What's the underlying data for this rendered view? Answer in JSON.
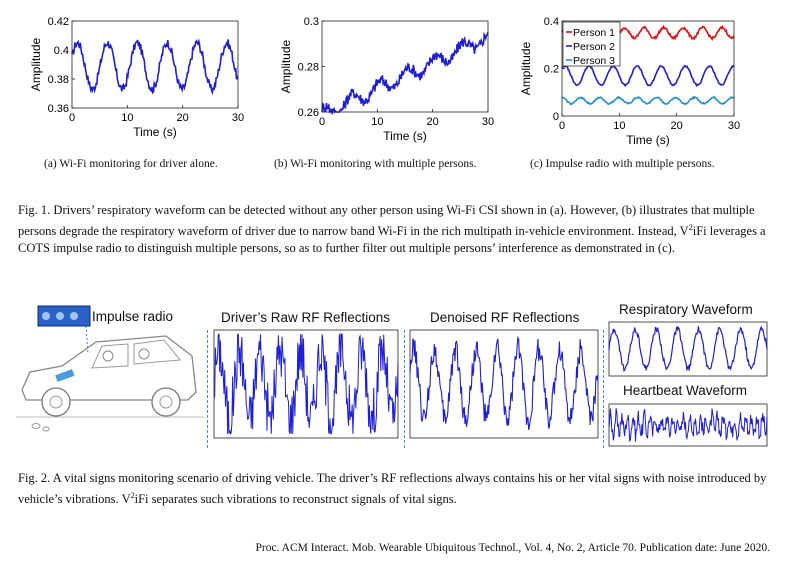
{
  "fig1": {
    "subcaptions": [
      "(a) Wi-Fi monitoring for driver alone.",
      "(b) Wi-Fi monitoring with multiple persons.",
      "(c) Impulse radio with multiple persons."
    ],
    "caption": "Fig. 1. Drivers’ respiratory waveform can be detected without any other person using Wi-Fi CSI shown in (a). However, (b) illustrates that multiple persons degrade the respiratory waveform of driver due to narrow band Wi-Fi in the rich multipath in-vehicle environment. Instead, V²iFi leverages a COTS impulse radio to distinguish multiple persons, so as to further filter out multiple persons’ interference as demonstrated in (c)."
  },
  "fig2": {
    "labels": {
      "impulse_radio": "Impulse radio",
      "raw": "Driver’s Raw RF Reflections",
      "denoised": "Denoised RF Reflections",
      "respiratory": "Respiratory Waveform",
      "heartbeat": "Heartbeat Waveform"
    },
    "caption": "Fig. 2. A vital signs monitoring scenario of driving vehicle. The driver’s RF reflections always contains his or her vital signs with noise introduced by vehicle’s vibrations. V²iFi separates such vibrations to reconstruct signals of vital signs."
  },
  "footer": "Proc. ACM Interact. Mob. Wearable Ubiquitous Technol., Vol. 4, No. 2, Article 70. Publication date: June 2020.",
  "colors": {
    "line": "#1f1fd6",
    "red": "#e01010",
    "cyan": "#1f8fd0",
    "dash": "#4a90c8"
  },
  "chart_data": [
    {
      "type": "line",
      "xlabel": "Time (s)",
      "ylabel": "Amplitude",
      "xlim": [
        0,
        30
      ],
      "ylim": [
        0.36,
        0.42
      ],
      "xticks": [
        0,
        10,
        20,
        30
      ],
      "yticks": [
        0.36,
        0.38,
        0.4,
        0.42
      ],
      "ytick_labels": [
        "0.36",
        "0.38",
        "0.4",
        "0.42"
      ],
      "series": [
        {
          "period": 5.4,
          "phase": 0.4,
          "mean": 0.389,
          "amp": 0.016,
          "noise": 0.003,
          "trend": 0.0
        }
      ]
    },
    {
      "type": "line",
      "xlabel": "Time (s)",
      "ylabel": "Amplitude",
      "xlim": [
        0,
        30
      ],
      "ylim": [
        0.26,
        0.3
      ],
      "xticks": [
        0,
        10,
        20,
        30
      ],
      "yticks": [
        0.26,
        0.28,
        0.3
      ],
      "ytick_labels": [
        "0.26",
        "0.28",
        "0.3"
      ],
      "series": [
        {
          "period": 5.0,
          "phase": 1.0,
          "mean": 0.276,
          "amp": 0.003,
          "noise": 0.0025,
          "trend": 0.017
        }
      ]
    },
    {
      "type": "line",
      "xlabel": "Time (s)",
      "ylabel": "Amplitude",
      "xlim": [
        0,
        30
      ],
      "ylim": [
        0,
        0.4
      ],
      "xticks": [
        0,
        10,
        20,
        30
      ],
      "yticks": [
        0,
        0.2,
        0.4
      ],
      "ytick_labels": [
        "0",
        "0.2",
        "0.4"
      ],
      "legend_position": "top-left",
      "series": [
        {
          "name": "Person 1",
          "color": "#e01010",
          "period": 3.4,
          "phase": 0.2,
          "mean": 0.35,
          "amp": 0.022,
          "noise": 0.005,
          "trend": 0.0
        },
        {
          "name": "Person 2",
          "color": "#1f1fd6",
          "period": 4.2,
          "phase": 0.8,
          "mean": 0.17,
          "amp": 0.04,
          "noise": 0.003,
          "trend": 0.0
        },
        {
          "name": "Person 3",
          "color": "#1f8fd0",
          "period": 3.3,
          "phase": 1.6,
          "mean": 0.065,
          "amp": 0.013,
          "noise": 0.003,
          "trend": 0.0
        }
      ]
    }
  ]
}
